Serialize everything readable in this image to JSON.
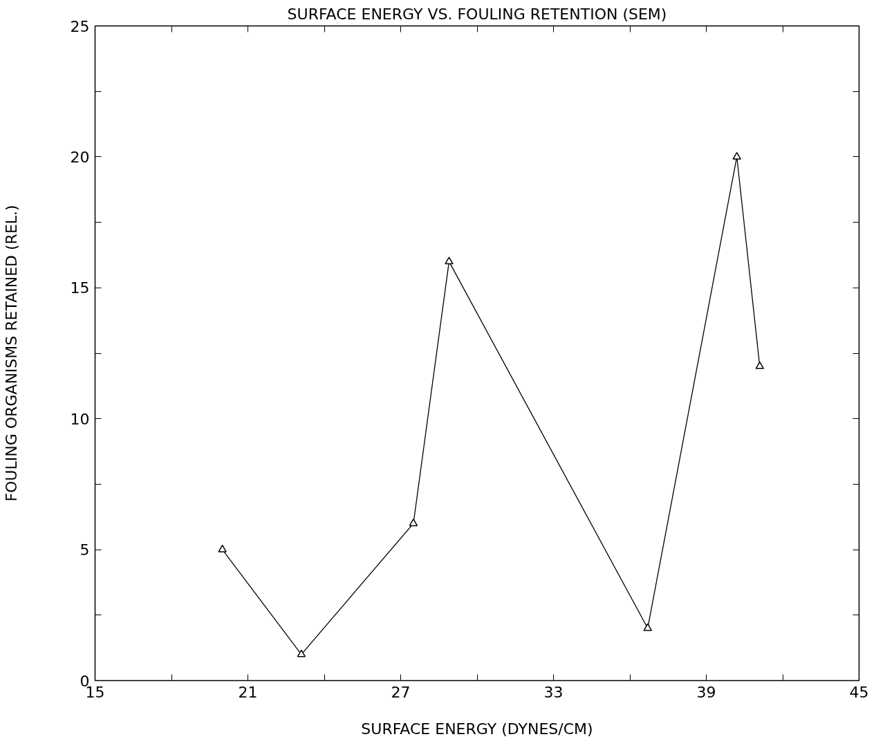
{
  "chart_data": {
    "type": "line",
    "title": "SURFACE ENERGY VS. FOULING RETENTION (SEM)",
    "xlabel": "SURFACE ENERGY (DYNES/CM)",
    "ylabel": "FOULING ORGANISMS RETAINED (REL.)",
    "x": [
      20,
      23.1,
      27.5,
      28.9,
      36.7,
      40.2,
      41.1
    ],
    "series": [
      {
        "color": "#000000",
        "values": [
          5,
          1,
          6,
          16,
          2,
          20,
          12
        ]
      }
    ],
    "xlim": [
      15,
      45
    ],
    "xticks": [
      15,
      {
        "value": 18,
        "label": null
      },
      21,
      {
        "value": 24,
        "label": null
      },
      27,
      {
        "value": 30,
        "label": null
      },
      33,
      {
        "value": 36,
        "label": null
      },
      39,
      {
        "value": 42,
        "label": null
      },
      45
    ],
    "ylim": [
      0,
      25
    ],
    "yticks": [
      0,
      {
        "value": 2.5,
        "label": null
      },
      5,
      {
        "value": 7.5,
        "label": null
      },
      10,
      {
        "value": 12.5,
        "label": null
      },
      15,
      {
        "value": 17.5,
        "label": null
      },
      20,
      {
        "value": 22.5,
        "label": null
      },
      25
    ],
    "marker": "triangle",
    "line_style": "solid",
    "grid": false
  }
}
